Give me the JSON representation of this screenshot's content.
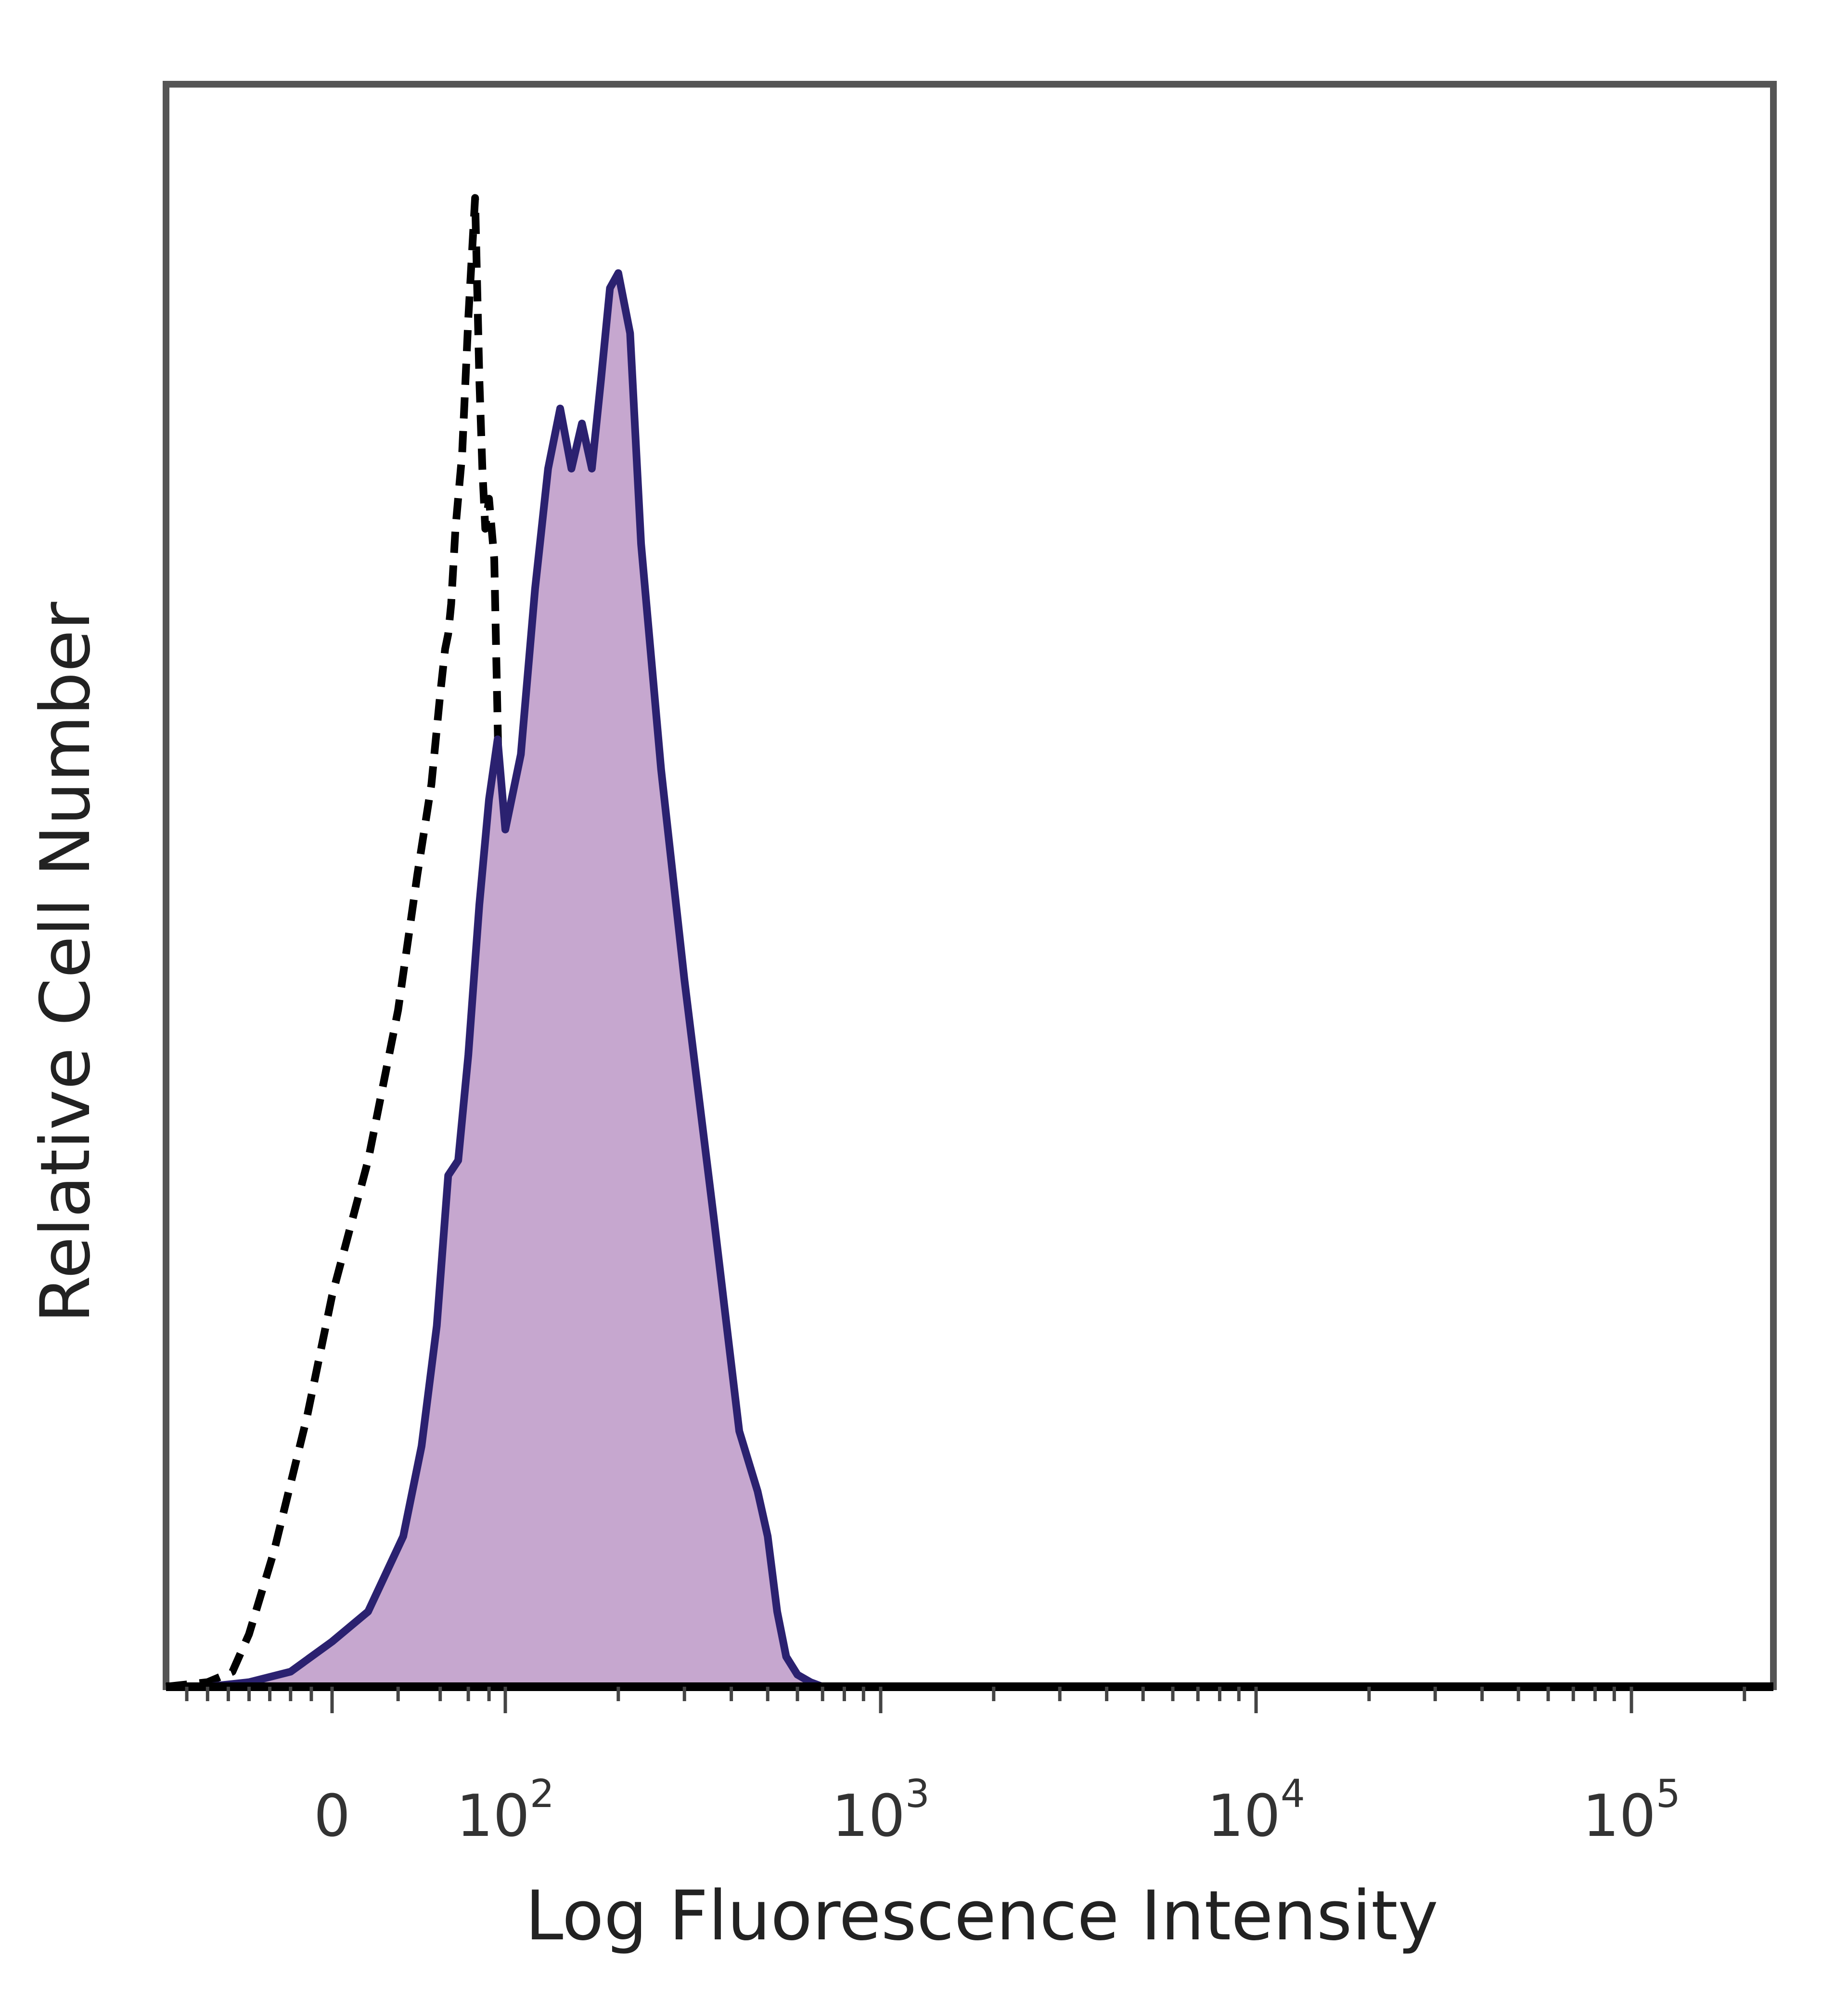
{
  "chart_data": {
    "type": "area",
    "title": "",
    "xlabel": "Log Fluorescence Intensity",
    "ylabel": "Relative Cell Number",
    "xscale": "biexponential-log",
    "xlim": [
      -80,
      200000
    ],
    "ylim": [
      0,
      1.0
    ],
    "grid": false,
    "legend": "none",
    "x_tick_labels": [
      {
        "value": 0,
        "base": "0",
        "exp": ""
      },
      {
        "value": 100,
        "base": "10",
        "exp": "2"
      },
      {
        "value": 1000,
        "base": "10",
        "exp": "3"
      },
      {
        "value": 10000,
        "base": "10",
        "exp": "4"
      },
      {
        "value": 100000,
        "base": "10",
        "exp": "5"
      }
    ],
    "series": [
      {
        "style": "dashed-outline",
        "color": "#000000",
        "x": [
          -80,
          -60,
          -48,
          -40,
          -28,
          -12,
          0,
          10,
          20,
          28,
          35,
          40,
          43,
          45,
          47,
          50,
          55,
          60,
          66,
          70,
          73,
          76,
          80,
          86,
          92,
          100,
          108,
          115,
          125,
          135,
          150,
          170,
          200,
          240,
          300,
          400,
          500,
          700,
          1000,
          10000,
          200000
        ],
        "y": [
          0.0,
          0.003,
          0.01,
          0.035,
          0.09,
          0.18,
          0.26,
          0.35,
          0.45,
          0.54,
          0.6,
          0.66,
          0.69,
          0.7,
          0.72,
          0.77,
          0.82,
          0.91,
          0.99,
          0.87,
          0.81,
          0.77,
          0.79,
          0.75,
          0.59,
          0.51,
          0.42,
          0.31,
          0.22,
          0.14,
          0.09,
          0.055,
          0.03,
          0.012,
          0.005,
          0.002,
          0.0,
          0.0,
          0.0,
          0.0,
          0.0
        ]
      },
      {
        "style": "filled",
        "color": "#c6a7cf",
        "stroke": "#2b2170",
        "x": [
          -60,
          -40,
          -20,
          0,
          10,
          22,
          30,
          38,
          45,
          52,
          60,
          70,
          80,
          90,
          100,
          110,
          120,
          130,
          140,
          150,
          160,
          170,
          180,
          190,
          200,
          215,
          230,
          260,
          300,
          360,
          420,
          470,
          500,
          530,
          560,
          600,
          650,
          700,
          800,
          1000,
          10000,
          200000
        ],
        "y": [
          0.0,
          0.003,
          0.01,
          0.03,
          0.05,
          0.1,
          0.16,
          0.24,
          0.34,
          0.35,
          0.42,
          0.52,
          0.59,
          0.63,
          0.57,
          0.62,
          0.73,
          0.81,
          0.85,
          0.81,
          0.84,
          0.81,
          0.87,
          0.93,
          0.94,
          0.9,
          0.76,
          0.61,
          0.47,
          0.31,
          0.17,
          0.13,
          0.1,
          0.05,
          0.02,
          0.008,
          0.003,
          0.0,
          0.0,
          0.0,
          0.0,
          0.0
        ]
      }
    ]
  }
}
